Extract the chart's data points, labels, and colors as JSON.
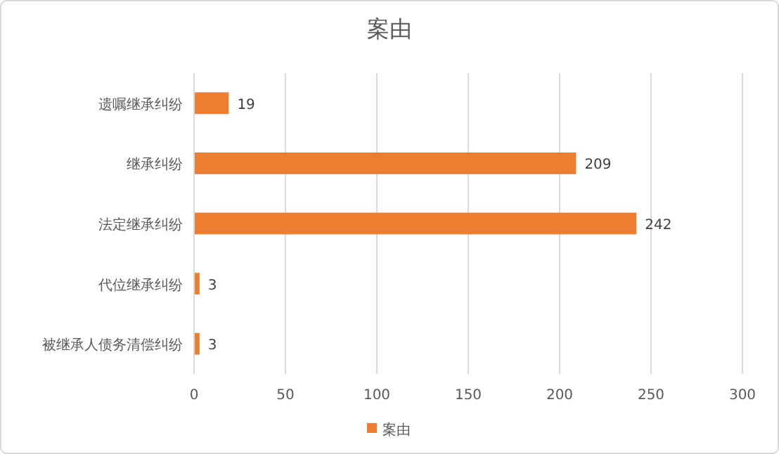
{
  "chart_data": {
    "type": "bar",
    "title": "案由",
    "orientation": "horizontal",
    "categories": [
      "遗嘱继承纠纷",
      "继承纠纷",
      "法定继承纠纷",
      "代位继承纠纷",
      "被继承人债务清偿纠纷"
    ],
    "series": [
      {
        "name": "案由",
        "color": "#ed7d31",
        "values": [
          19,
          209,
          242,
          3,
          3
        ]
      }
    ],
    "xlim": [
      0,
      300
    ],
    "xticks": [
      0,
      50,
      100,
      150,
      200,
      250,
      300
    ],
    "grid": "x",
    "legend": "bottom",
    "data_labels": true
  }
}
